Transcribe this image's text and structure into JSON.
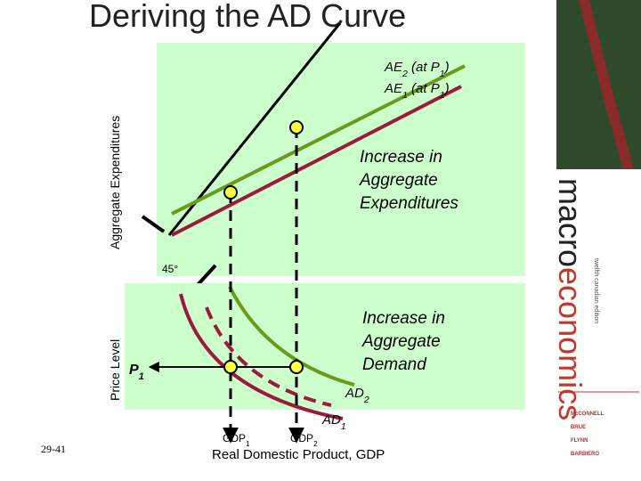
{
  "title": "Deriving the AD Curve",
  "top_panel": {
    "y_label": "Aggregate Expenditures",
    "ae2_label": [
      "AE",
      "2",
      " (at P",
      "1",
      ")"
    ],
    "ae1_label": [
      "AE",
      "1",
      " (at P",
      "1",
      ")"
    ],
    "annotation": [
      "Increase in",
      "Aggregate",
      "Expenditures"
    ],
    "angle_label": "45°"
  },
  "bottom_panel": {
    "y_label": "Price Level",
    "p_label": [
      "P",
      "1"
    ],
    "annotation": [
      "Increase in",
      "Aggregate",
      "Demand"
    ],
    "ad2_label": [
      "AD",
      "2"
    ],
    "ad1_label": [
      "AD",
      "1"
    ],
    "gdp1_label": [
      "GDP",
      "1"
    ],
    "gdp2_label": [
      "GDP",
      "2"
    ],
    "x_label": "Real Domestic Product, GDP"
  },
  "slide_number": "29-41",
  "book": {
    "title_part1": "macro",
    "title_part2": "economics",
    "edition": "twelfth canadian edition",
    "authors": [
      "McCONNELL",
      "BRUE",
      "FLYNN",
      "BARBIERO"
    ]
  }
}
